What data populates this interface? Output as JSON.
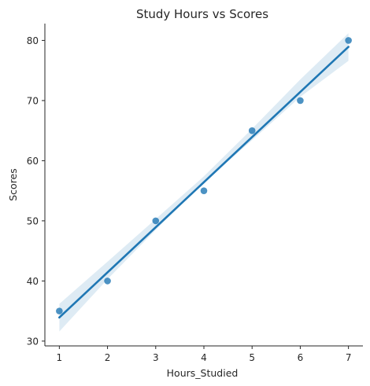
{
  "chart_data": {
    "type": "scatter",
    "title": "Study Hours vs Scores",
    "xlabel": "Hours_Studied",
    "ylabel": "Scores",
    "xlim": [
      0.7,
      7.3
    ],
    "ylim": [
      29.2,
      82.8
    ],
    "x_ticks": [
      1,
      2,
      3,
      4,
      5,
      6,
      7
    ],
    "y_ticks": [
      30,
      40,
      50,
      60,
      70,
      80
    ],
    "grid": false,
    "series": [
      {
        "x": [
          1,
          2,
          3,
          4,
          5,
          6,
          7
        ],
        "y": [
          35,
          40,
          50,
          55,
          65,
          70,
          80
        ],
        "color": "#1f77b4"
      }
    ],
    "regression": {
      "slope": 7.5,
      "intercept": 26.4286,
      "color": "#1f77b4",
      "ci_color": "#1f77b4",
      "ci": [
        {
          "x": 1.0,
          "lower": 31.6,
          "upper": 36.2
        },
        {
          "x": 2.0,
          "lower": 40.3,
          "upper": 43.2
        },
        {
          "x": 3.0,
          "lower": 48.5,
          "upper": 50.3
        },
        {
          "x": 4.0,
          "lower": 56.4,
          "upper": 57.4
        },
        {
          "x": 5.0,
          "lower": 63.4,
          "upper": 65.3
        },
        {
          "x": 6.0,
          "lower": 70.6,
          "upper": 73.5
        },
        {
          "x": 7.0,
          "lower": 76.6,
          "upper": 81.2
        }
      ]
    }
  }
}
